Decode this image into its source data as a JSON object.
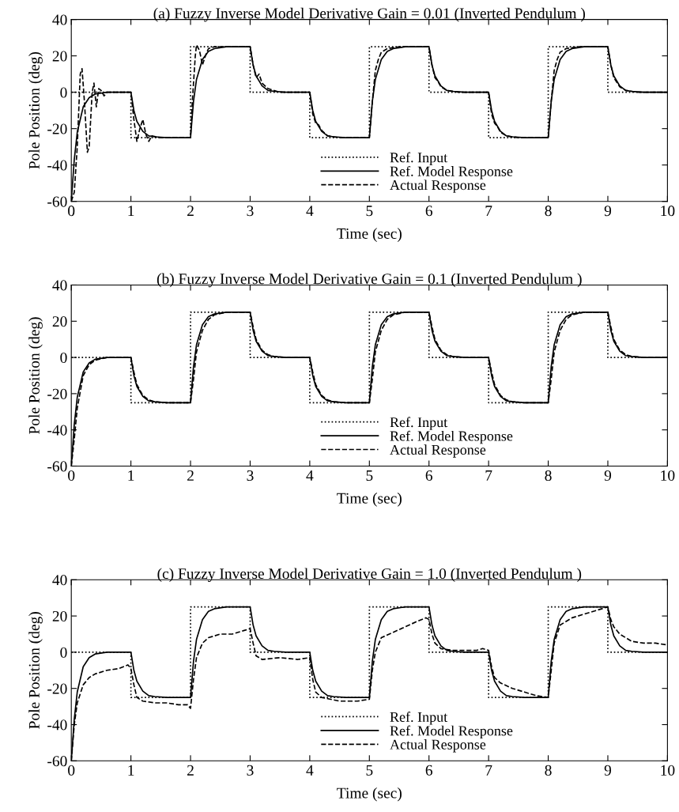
{
  "chart_data": [
    {
      "type": "line",
      "title": "(a) Fuzzy Inverse Model Derivative Gain = 0.01 (Inverted Pendulum )",
      "xlabel": "Time (sec)",
      "ylabel": "Pole Position (deg)",
      "xlim": [
        0,
        10
      ],
      "ylim": [
        -60,
        40
      ],
      "xticks": [
        0,
        1,
        2,
        3,
        4,
        5,
        6,
        7,
        8,
        9,
        10
      ],
      "yticks": [
        -60,
        -40,
        -20,
        0,
        20,
        40
      ],
      "grid": false,
      "legend": "bottom",
      "series": [
        {
          "name": "Ref. Input",
          "type": "step",
          "color": "#000000",
          "line_style": "dotted",
          "x": [
            0,
            1,
            2,
            3,
            4,
            5,
            6,
            7,
            8,
            9,
            10
          ],
          "values": [
            0,
            -25,
            25,
            0,
            -25,
            25,
            0,
            -25,
            25,
            0,
            0
          ]
        },
        {
          "name": "Ref. Model Response",
          "color": "#000000",
          "line_style": "solid",
          "x": [
            0,
            0.05,
            0.1,
            0.2,
            0.3,
            0.4,
            0.6,
            1,
            1.05,
            1.1,
            1.2,
            1.3,
            1.4,
            1.6,
            2,
            2.05,
            2.1,
            2.2,
            2.3,
            2.4,
            2.6,
            3,
            3.05,
            3.1,
            3.2,
            3.3,
            3.4,
            3.6,
            4,
            4.05,
            4.1,
            4.2,
            4.3,
            4.4,
            4.6,
            5,
            5.05,
            5.1,
            5.2,
            5.3,
            5.4,
            5.6,
            6,
            6.05,
            6.1,
            6.2,
            6.3,
            6.4,
            6.6,
            7,
            7.05,
            7.1,
            7.2,
            7.3,
            7.4,
            7.6,
            8,
            8.05,
            8.1,
            8.2,
            8.3,
            8.4,
            8.6,
            9,
            9.05,
            9.1,
            9.2,
            9.3,
            9.4,
            9.6,
            10
          ],
          "values": [
            -60,
            -37,
            -22,
            -8,
            -3,
            -1,
            0,
            0,
            -10,
            -16,
            -21.5,
            -24,
            -24.5,
            -25,
            -25,
            -5,
            7,
            18,
            22.5,
            24,
            25,
            25,
            15,
            9,
            3.5,
            1,
            0.5,
            0,
            0,
            -10,
            -16,
            -21.5,
            -24,
            -24.5,
            -25,
            -25,
            -5,
            7,
            18,
            22.5,
            24,
            25,
            25,
            15,
            9,
            3.5,
            1,
            0.5,
            0,
            0,
            -10,
            -16,
            -21.5,
            -24,
            -24.5,
            -25,
            -25,
            -5,
            7,
            18,
            22.5,
            24,
            25,
            25,
            15,
            9,
            3.5,
            1,
            0.5,
            0,
            0
          ]
        },
        {
          "name": "Actual Response",
          "color": "#000000",
          "line_style": "dashed",
          "x": [
            0,
            0.05,
            0.1,
            0.15,
            0.18,
            0.22,
            0.27,
            0.3,
            0.35,
            0.38,
            0.42,
            0.46,
            0.5,
            0.55,
            0.6,
            1,
            1.05,
            1.1,
            1.15,
            1.2,
            1.25,
            1.3,
            1.35,
            1.5,
            2,
            2.03,
            2.08,
            2.1,
            2.15,
            2.2,
            2.25,
            2.3,
            2.4,
            3,
            3.05,
            3.1,
            3.15,
            3.2,
            3.3,
            3.5,
            4,
            4.05,
            4.1,
            4.15,
            4.2,
            4.3,
            4.5,
            5,
            5.05,
            5.1,
            5.15,
            5.2,
            5.3,
            5.5,
            6,
            6.05,
            6.1,
            6.15,
            6.2,
            6.3,
            6.5,
            7,
            7.05,
            7.1,
            7.15,
            7.2,
            7.3,
            7.5,
            8,
            8.05,
            8.1,
            8.15,
            8.2,
            8.3,
            8.5,
            9,
            9.05,
            9.1,
            9.2,
            9.3,
            9.5,
            10
          ],
          "values": [
            -60,
            -55,
            -30,
            10,
            13,
            -5,
            -33,
            -30,
            0,
            5,
            -8,
            2,
            1,
            -2,
            0,
            0,
            -15,
            -27,
            -20,
            -15,
            -23,
            -27,
            -24,
            -25,
            -25,
            -5,
            20,
            26,
            23,
            15,
            20,
            24,
            25,
            25,
            15,
            8,
            10,
            5,
            2,
            0,
            0,
            -12,
            -17,
            -18,
            -21,
            -24,
            -25,
            -25,
            -5,
            12,
            18,
            22,
            24,
            25,
            25,
            15,
            8,
            6,
            3,
            1,
            0,
            0,
            -12,
            -17,
            -19,
            -22,
            -24,
            -25,
            -25,
            -5,
            12,
            18,
            22,
            24,
            25,
            25,
            15,
            8,
            3,
            1,
            0,
            0
          ]
        }
      ]
    },
    {
      "type": "line",
      "title": "(b) Fuzzy Inverse Model Derivative Gain = 0.1 (Inverted Pendulum )",
      "xlabel": "Time (sec)",
      "ylabel": "Pole Position (deg)",
      "xlim": [
        0,
        10
      ],
      "ylim": [
        -60,
        40
      ],
      "xticks": [
        0,
        1,
        2,
        3,
        4,
        5,
        6,
        7,
        8,
        9,
        10
      ],
      "yticks": [
        -60,
        -40,
        -20,
        0,
        20,
        40
      ],
      "grid": false,
      "legend": "bottom",
      "series": [
        {
          "name": "Ref. Input",
          "type": "step",
          "color": "#000000",
          "line_style": "dotted",
          "x": [
            0,
            1,
            2,
            3,
            4,
            5,
            6,
            7,
            8,
            9,
            10
          ],
          "values": [
            0,
            -25,
            25,
            0,
            -25,
            25,
            0,
            -25,
            25,
            0,
            0
          ]
        },
        {
          "name": "Ref. Model Response",
          "color": "#000000",
          "line_style": "solid",
          "x": [
            0,
            0.05,
            0.1,
            0.2,
            0.3,
            0.4,
            0.6,
            1,
            1.05,
            1.1,
            1.2,
            1.3,
            1.4,
            1.6,
            2,
            2.05,
            2.1,
            2.2,
            2.3,
            2.4,
            2.6,
            3,
            3.05,
            3.1,
            3.2,
            3.3,
            3.4,
            3.6,
            4,
            4.05,
            4.1,
            4.2,
            4.3,
            4.4,
            4.6,
            5,
            5.05,
            5.1,
            5.2,
            5.3,
            5.4,
            5.6,
            6,
            6.05,
            6.1,
            6.2,
            6.3,
            6.4,
            6.6,
            7,
            7.05,
            7.1,
            7.2,
            7.3,
            7.4,
            7.6,
            8,
            8.05,
            8.1,
            8.2,
            8.3,
            8.4,
            8.6,
            9,
            9.05,
            9.1,
            9.2,
            9.3,
            9.4,
            9.6,
            10
          ],
          "values": [
            -60,
            -37,
            -22,
            -8,
            -3,
            -1,
            0,
            0,
            -10,
            -16,
            -21.5,
            -24,
            -24.5,
            -25,
            -25,
            -5,
            7,
            18,
            22.5,
            24,
            25,
            25,
            15,
            9,
            3.5,
            1,
            0.5,
            0,
            0,
            -10,
            -16,
            -21.5,
            -24,
            -24.5,
            -25,
            -25,
            -5,
            7,
            18,
            22.5,
            24,
            25,
            25,
            15,
            9,
            3.5,
            1,
            0.5,
            0,
            0,
            -10,
            -16,
            -21.5,
            -24,
            -24.5,
            -25,
            -25,
            -5,
            7,
            18,
            22.5,
            24,
            25,
            25,
            15,
            9,
            3.5,
            1,
            0.5,
            0,
            0
          ]
        },
        {
          "name": "Actual Response",
          "color": "#000000",
          "line_style": "dashed",
          "x": [
            0,
            0.05,
            0.1,
            0.2,
            0.3,
            0.4,
            0.6,
            1,
            1.05,
            1.1,
            1.2,
            1.3,
            1.4,
            1.6,
            2,
            2.05,
            2.1,
            2.2,
            2.3,
            2.4,
            2.6,
            3,
            3.05,
            3.1,
            3.2,
            3.3,
            3.4,
            3.6,
            4,
            4.05,
            4.1,
            4.2,
            4.3,
            4.4,
            4.6,
            5,
            5.05,
            5.1,
            5.2,
            5.3,
            5.4,
            5.6,
            6,
            6.05,
            6.1,
            6.2,
            6.3,
            6.4,
            6.6,
            7,
            7.05,
            7.1,
            7.2,
            7.3,
            7.4,
            7.6,
            8,
            8.05,
            8.1,
            8.2,
            8.3,
            8.4,
            8.6,
            9,
            9.05,
            9.1,
            9.2,
            9.3,
            9.4,
            9.6,
            10
          ],
          "values": [
            -60,
            -45,
            -28,
            -10,
            -4,
            -1.5,
            0,
            0,
            -8,
            -15,
            -21,
            -23.5,
            -24.5,
            -25,
            -25,
            -12,
            3,
            15,
            21,
            23.5,
            25,
            25,
            17,
            10,
            4,
            1.5,
            0.5,
            0,
            0,
            -8,
            -15,
            -21,
            -23.5,
            -24.5,
            -25,
            -25,
            -12,
            3,
            15,
            21,
            23.5,
            25,
            25,
            17,
            10,
            4,
            1.5,
            0.5,
            0,
            0,
            -8,
            -15,
            -21,
            -23.5,
            -24.5,
            -25,
            -25,
            -12,
            3,
            15,
            21,
            23.5,
            25,
            25,
            17,
            10,
            4,
            1.5,
            0.5,
            0,
            0
          ]
        }
      ]
    },
    {
      "type": "line",
      "title": "(c) Fuzzy Inverse Model Derivative Gain = 1.0 (Inverted Pendulum )",
      "xlabel": "Time (sec)",
      "ylabel": "Pole Position (deg)",
      "xlim": [
        0,
        10
      ],
      "ylim": [
        -60,
        40
      ],
      "xticks": [
        0,
        1,
        2,
        3,
        4,
        5,
        6,
        7,
        8,
        9,
        10
      ],
      "yticks": [
        -60,
        -40,
        -20,
        0,
        20,
        40
      ],
      "grid": false,
      "legend": "bottom",
      "series": [
        {
          "name": "Ref. Input",
          "type": "step",
          "color": "#000000",
          "line_style": "dotted",
          "x": [
            0,
            1,
            2,
            3,
            4,
            5,
            6,
            7,
            8,
            9,
            10
          ],
          "values": [
            0,
            -25,
            25,
            0,
            -25,
            25,
            0,
            -25,
            25,
            0,
            0
          ]
        },
        {
          "name": "Ref. Model Response",
          "color": "#000000",
          "line_style": "solid",
          "x": [
            0,
            0.05,
            0.1,
            0.2,
            0.3,
            0.4,
            0.6,
            1,
            1.05,
            1.1,
            1.2,
            1.3,
            1.4,
            1.6,
            2,
            2.05,
            2.1,
            2.2,
            2.3,
            2.4,
            2.6,
            3,
            3.05,
            3.1,
            3.2,
            3.3,
            3.4,
            3.6,
            4,
            4.05,
            4.1,
            4.2,
            4.3,
            4.4,
            4.6,
            5,
            5.05,
            5.1,
            5.2,
            5.3,
            5.4,
            5.6,
            6,
            6.05,
            6.1,
            6.2,
            6.3,
            6.4,
            6.6,
            7,
            7.05,
            7.1,
            7.2,
            7.3,
            7.4,
            7.6,
            8,
            8.05,
            8.1,
            8.2,
            8.3,
            8.4,
            8.6,
            9,
            9.05,
            9.1,
            9.2,
            9.3,
            9.4,
            9.6,
            10
          ],
          "values": [
            -60,
            -37,
            -22,
            -8,
            -3,
            -1,
            0,
            0,
            -10,
            -16,
            -21.5,
            -24,
            -24.5,
            -25,
            -25,
            -5,
            7,
            18,
            22.5,
            24,
            25,
            25,
            15,
            9,
            3.5,
            1,
            0.5,
            0,
            0,
            -10,
            -16,
            -21.5,
            -24,
            -24.5,
            -25,
            -25,
            -5,
            7,
            18,
            22.5,
            24,
            25,
            25,
            15,
            9,
            3.5,
            1,
            0.5,
            0,
            0,
            -10,
            -16,
            -21.5,
            -24,
            -24.5,
            -25,
            -25,
            -5,
            7,
            18,
            22.5,
            24,
            25,
            25,
            15,
            9,
            3.5,
            1,
            0.5,
            0,
            0
          ]
        },
        {
          "name": "Actual Response",
          "color": "#000000",
          "line_style": "dashed",
          "x": [
            0,
            0.05,
            0.1,
            0.2,
            0.3,
            0.4,
            0.6,
            0.8,
            0.95,
            1,
            1.05,
            1.1,
            1.2,
            1.4,
            1.6,
            1.8,
            1.95,
            2,
            2.05,
            2.1,
            2.2,
            2.3,
            2.5,
            2.7,
            2.9,
            3,
            3.05,
            3.1,
            3.2,
            3.5,
            3.8,
            4,
            4.05,
            4.1,
            4.2,
            4.5,
            4.8,
            5,
            5.05,
            5.1,
            5.2,
            5.4,
            5.6,
            5.8,
            5.95,
            6,
            6.05,
            6.1,
            6.2,
            6.4,
            6.6,
            6.8,
            6.9,
            7,
            7.05,
            7.1,
            7.2,
            7.4,
            7.6,
            7.8,
            8,
            8.05,
            8.1,
            8.2,
            8.4,
            8.6,
            8.8,
            9,
            9.05,
            9.1,
            9.2,
            9.4,
            9.6,
            9.8,
            10
          ],
          "values": [
            -60,
            -40,
            -28,
            -18,
            -14,
            -12,
            -10,
            -9,
            -7,
            -9,
            -18,
            -25,
            -27,
            -28,
            -28,
            -29,
            -29,
            -31,
            -15,
            -3,
            5,
            8,
            10,
            10,
            12,
            13,
            5,
            -2,
            -4,
            -3,
            -4,
            -3,
            -15,
            -22,
            -25,
            -27,
            -27,
            -26,
            -10,
            0,
            8,
            11,
            14,
            17,
            19,
            18,
            10,
            5,
            2,
            1,
            1,
            1,
            2,
            1,
            -8,
            -14,
            -17,
            -20,
            -22,
            -24,
            -25,
            -10,
            5,
            15,
            19,
            21,
            23,
            25,
            18,
            14,
            10,
            6,
            5,
            5,
            4
          ]
        }
      ]
    }
  ]
}
